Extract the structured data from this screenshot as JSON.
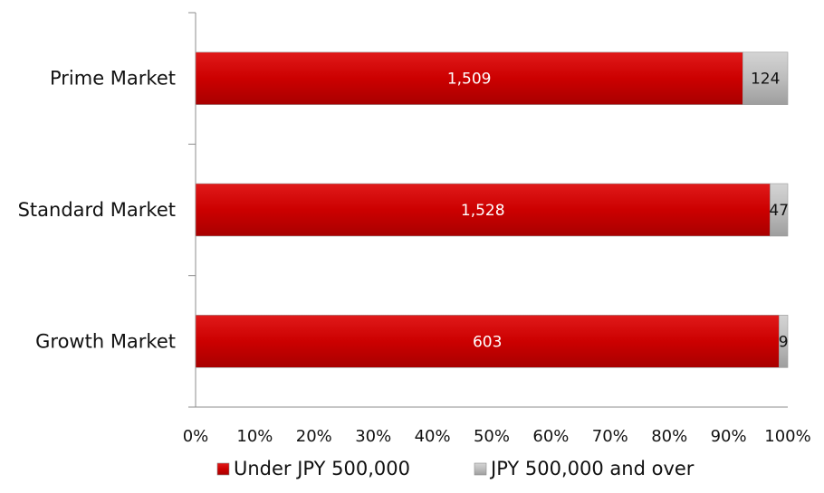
{
  "chart_data": {
    "type": "bar",
    "orientation": "horizontal",
    "stacked": "percent",
    "categories": [
      "Prime Market",
      "Standard Market",
      "Growth Market"
    ],
    "series": [
      {
        "name": "Under JPY 500,000",
        "values": [
          1509,
          1528,
          603
        ],
        "color": "#cc0000",
        "label_color": "#ffffff"
      },
      {
        "name": "JPY 500,000 and over",
        "values": [
          124,
          47,
          9
        ],
        "color": "#c0c0c0",
        "label_color": "#111111"
      }
    ],
    "data_labels": [
      [
        "1,509",
        "1,528",
        "603"
      ],
      [
        "124",
        "47",
        "9"
      ]
    ],
    "x_ticks": [
      "0%",
      "10%",
      "20%",
      "30%",
      "40%",
      "50%",
      "60%",
      "70%",
      "80%",
      "90%",
      "100%"
    ],
    "xlim": [
      0,
      100
    ],
    "grid": false,
    "legend_position": "bottom"
  }
}
